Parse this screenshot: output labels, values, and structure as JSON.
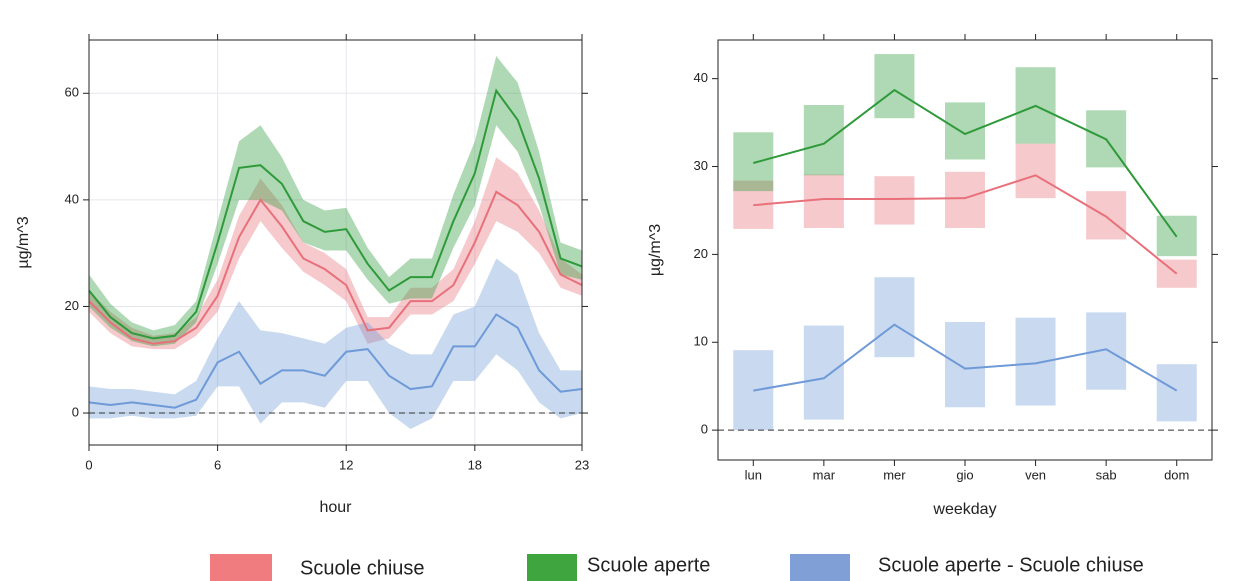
{
  "legend": [
    {
      "name": "Scuole chiuse",
      "color": "#f07c80"
    },
    {
      "name": "Scuole aperte",
      "color": "#3fa53f"
    },
    {
      "name": "Scuole aperte - Scuole chiuse",
      "color": "#7f9fd6"
    }
  ],
  "chart_data": [
    {
      "type": "line",
      "band": "area",
      "xlabel": "hour",
      "ylabel": "µg/m^3",
      "x": [
        0,
        1,
        2,
        3,
        4,
        5,
        6,
        7,
        8,
        9,
        10,
        11,
        12,
        13,
        14,
        15,
        16,
        17,
        18,
        19,
        20,
        21,
        22,
        23
      ],
      "xlim": [
        0,
        23
      ],
      "xticks": [
        0,
        6,
        12,
        18,
        23
      ],
      "ylim": [
        -6,
        70
      ],
      "yticks": [
        0,
        20,
        40,
        60
      ],
      "grid": true,
      "hline": 0,
      "series": [
        {
          "color": "#e8707a",
          "values": [
            21,
            17,
            14,
            13,
            13.5,
            16,
            22,
            33,
            40,
            35,
            29,
            27,
            24,
            15.5,
            16,
            21,
            21,
            24,
            32,
            41.5,
            39,
            34,
            26,
            24
          ],
          "lower": [
            19,
            15,
            12.5,
            12,
            12,
            14.5,
            19,
            29,
            36,
            31,
            26.5,
            24,
            21,
            13,
            14,
            18.5,
            18.5,
            21,
            28,
            36,
            34,
            30,
            23.5,
            22
          ],
          "upper": [
            23,
            19,
            16,
            14.5,
            15,
            18,
            25,
            37,
            44,
            39,
            32,
            30,
            27,
            18,
            18,
            23.5,
            23.5,
            27,
            36,
            48,
            45,
            38,
            29,
            26
          ]
        },
        {
          "color": "#2e9a3a",
          "values": [
            23,
            18,
            15,
            14,
            14.5,
            19,
            32,
            46,
            46.5,
            43,
            36,
            34,
            34.5,
            28,
            23,
            25.5,
            25.5,
            36,
            45,
            60.5,
            55,
            44,
            29,
            27.5
          ],
          "lower": [
            20,
            16,
            13.5,
            12.5,
            13,
            17,
            28,
            40,
            40,
            38,
            32,
            30.5,
            30.5,
            25,
            20.5,
            21.5,
            21.5,
            31,
            39,
            54,
            49,
            39,
            26,
            25
          ],
          "upper": [
            26,
            20.5,
            17,
            15.5,
            16.5,
            21,
            36,
            51,
            54,
            48,
            40,
            38,
            38.5,
            31,
            25.5,
            29,
            29,
            41,
            51,
            67,
            62,
            49,
            32,
            30.5
          ]
        },
        {
          "color": "#6f9ad8",
          "values": [
            2,
            1.5,
            2,
            1.5,
            1,
            2.5,
            9.5,
            11.5,
            5.5,
            8,
            8,
            7,
            11.5,
            12,
            7,
            4.5,
            5,
            12.5,
            12.5,
            18.5,
            16,
            8,
            4,
            4.5
          ],
          "lower": [
            -1,
            -1,
            -0.5,
            -1,
            -1,
            -0.5,
            5,
            5,
            -2,
            2,
            2,
            1,
            6,
            6,
            0,
            -3,
            -1,
            6,
            6,
            11,
            8,
            2,
            -1,
            0
          ],
          "upper": [
            5,
            4.5,
            4.5,
            4,
            3.5,
            6,
            14,
            21,
            15.5,
            15,
            14,
            13,
            16,
            17,
            13,
            11,
            11,
            18.5,
            20,
            29,
            26,
            15,
            8,
            8
          ]
        }
      ]
    },
    {
      "type": "line",
      "band": "box",
      "xlabel": "weekday",
      "ylabel": "µg/m^3",
      "categories": [
        "lun",
        "mar",
        "mer",
        "gio",
        "ven",
        "sab",
        "dom"
      ],
      "ylim": [
        -3.4,
        44.4
      ],
      "yticks": [
        0,
        10,
        20,
        30,
        40
      ],
      "grid": false,
      "hline": 0,
      "series": [
        {
          "color": "#e8707a",
          "values": [
            25.6,
            26.3,
            26.3,
            26.4,
            29,
            24.3,
            17.8
          ],
          "lower": [
            22.9,
            23,
            23.4,
            23,
            26.4,
            21.7,
            16.2
          ],
          "upper": [
            28.4,
            29.1,
            28.9,
            29.4,
            32.6,
            27.2,
            19.4
          ]
        },
        {
          "color": "#2e9a3a",
          "values": [
            30.4,
            32.6,
            38.7,
            33.7,
            36.9,
            33.1,
            22
          ],
          "lower": [
            27.2,
            29,
            35.5,
            30.8,
            32.6,
            29.9,
            19.8
          ],
          "upper": [
            33.9,
            37,
            42.8,
            37.3,
            41.3,
            36.4,
            24.4
          ]
        },
        {
          "color": "#6f9ad8",
          "values": [
            4.5,
            5.9,
            12,
            7,
            7.6,
            9.2,
            4.5
          ],
          "lower": [
            0,
            1.2,
            8.3,
            2.6,
            2.8,
            4.6,
            1
          ],
          "upper": [
            9.1,
            11.9,
            17.4,
            12.3,
            12.8,
            13.4,
            7.5
          ]
        }
      ]
    }
  ]
}
